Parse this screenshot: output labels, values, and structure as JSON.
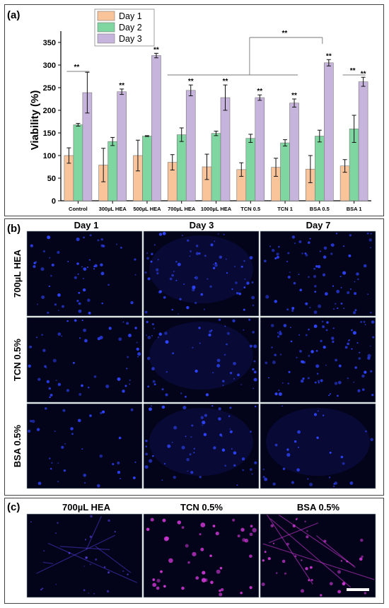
{
  "panel_letters": {
    "a": "(a)",
    "b": "(b)",
    "c": "(c)"
  },
  "chart_data": {
    "type": "bar",
    "title": "",
    "xlabel": "",
    "ylabel": "Viability (%)",
    "ylim": [
      0,
      375
    ],
    "yticks": [
      0,
      50,
      100,
      150,
      200,
      250,
      300,
      350
    ],
    "legend_position": "top-left",
    "categories": [
      "Control",
      "300µL HEA",
      "500µL HEA",
      "700µL HEA",
      "1000µL HEA",
      "TCN 0.5",
      "TCN 1",
      "BSA 0.5",
      "BSA 1"
    ],
    "series": [
      {
        "name": "Day 1",
        "color": "#f9c49a",
        "values": [
          100,
          79,
          100,
          85,
          75,
          69,
          74,
          70,
          77
        ],
        "errors": [
          17,
          37,
          34,
          17,
          28,
          15,
          20,
          30,
          14
        ]
      },
      {
        "name": "Day 2",
        "color": "#7fd6a0",
        "values": [
          168,
          131,
          143,
          146,
          149,
          138,
          128,
          143,
          159
        ],
        "errors": [
          3,
          9,
          1,
          15,
          5,
          9,
          7,
          13,
          30
        ]
      },
      {
        "name": "Day 3",
        "color": "#c7b4dd",
        "values": [
          239,
          241,
          321,
          244,
          228,
          228,
          216,
          305,
          263
        ],
        "errors": [
          45,
          6,
          5,
          12,
          28,
          6,
          9,
          7,
          10
        ]
      }
    ],
    "significance_label": "**"
  },
  "panel_b": {
    "columns": [
      "Day 1",
      "Day 3",
      "Day 7"
    ],
    "rows": [
      "700µL HEA",
      "TCN 0.5%",
      "BSA 0.5%"
    ]
  },
  "panel_c": {
    "columns": [
      "700µL HEA",
      "TCN 0.5%",
      "BSA 0.5%"
    ]
  },
  "colors": {
    "nuclei": "#2f45ff",
    "stain_magenta": "#d038d6",
    "micrograph_bg": "#03031a"
  }
}
